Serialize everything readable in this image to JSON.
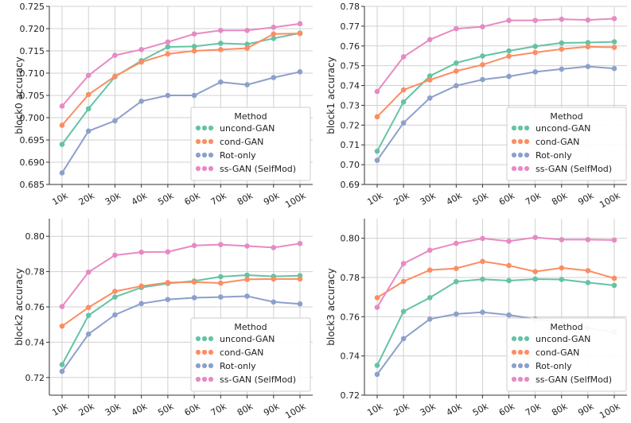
{
  "chart_data": [
    {
      "type": "line",
      "ylabel": "block0 accuracy",
      "categories": [
        "10k",
        "20k",
        "30k",
        "40k",
        "50k",
        "60k",
        "70k",
        "80k",
        "90k",
        "100k"
      ],
      "ylim": [
        0.685,
        0.725
      ],
      "yticks": [
        "0.685",
        "0.690",
        "0.695",
        "0.700",
        "0.705",
        "0.710",
        "0.715",
        "0.720",
        "0.725"
      ],
      "grid": true,
      "legend": {
        "title": "Method",
        "placement": "lower-right"
      },
      "series": [
        {
          "name": "uncond-GAN",
          "values": [
            0.694,
            0.702,
            0.7092,
            0.7128,
            0.7159,
            0.716,
            0.7167,
            0.7165,
            0.7178,
            0.719
          ]
        },
        {
          "name": "cond-GAN",
          "values": [
            0.6983,
            0.7052,
            0.7093,
            0.7125,
            0.7143,
            0.715,
            0.7153,
            0.7156,
            0.7188,
            0.7189
          ]
        },
        {
          "name": "Rot-only",
          "values": [
            0.6876,
            0.697,
            0.6993,
            0.7037,
            0.705,
            0.705,
            0.708,
            0.7074,
            0.709,
            0.7103
          ]
        },
        {
          "name": "ss-GAN (SelfMod)",
          "values": [
            0.7026,
            0.7095,
            0.714,
            0.7153,
            0.717,
            0.7188,
            0.7196,
            0.7196,
            0.7203,
            0.7211
          ]
        }
      ]
    },
    {
      "type": "line",
      "ylabel": "block1 accuracy",
      "categories": [
        "10k",
        "20k",
        "30k",
        "40k",
        "50k",
        "60k",
        "70k",
        "80k",
        "90k",
        "100k"
      ],
      "ylim": [
        0.69,
        0.78
      ],
      "yticks": [
        "0.69",
        "0.70",
        "0.71",
        "0.72",
        "0.73",
        "0.74",
        "0.75",
        "0.76",
        "0.77",
        "0.78"
      ],
      "grid": true,
      "legend": {
        "title": "Method",
        "placement": "lower-right"
      },
      "series": [
        {
          "name": "uncond-GAN",
          "values": [
            0.7068,
            0.7317,
            0.7448,
            0.7514,
            0.7549,
            0.7575,
            0.7598,
            0.7615,
            0.7617,
            0.7621
          ]
        },
        {
          "name": "cond-GAN",
          "values": [
            0.7242,
            0.7378,
            0.7428,
            0.7473,
            0.7505,
            0.7548,
            0.7567,
            0.7584,
            0.7596,
            0.7593
          ]
        },
        {
          "name": "Rot-only",
          "values": [
            0.7022,
            0.7211,
            0.7337,
            0.7399,
            0.743,
            0.7446,
            0.7469,
            0.7483,
            0.7496,
            0.7486
          ]
        },
        {
          "name": "ss-GAN (SelfMod)",
          "values": [
            0.737,
            0.7545,
            0.7632,
            0.7687,
            0.7697,
            0.7729,
            0.7729,
            0.7735,
            0.7731,
            0.7738
          ]
        }
      ]
    },
    {
      "type": "line",
      "ylabel": "block2 accuracy",
      "categories": [
        "10k",
        "20k",
        "30k",
        "40k",
        "50k",
        "60k",
        "70k",
        "80k",
        "90k",
        "100k"
      ],
      "ylim": [
        0.71,
        0.81
      ],
      "yticks": [
        "0.72",
        "0.74",
        "0.76",
        "0.78",
        "0.80"
      ],
      "grid": true,
      "legend": {
        "title": "Method",
        "placement": "lower-right"
      },
      "series": [
        {
          "name": "uncond-GAN",
          "values": [
            0.7273,
            0.7552,
            0.7656,
            0.771,
            0.7733,
            0.7747,
            0.7771,
            0.778,
            0.7773,
            0.7777
          ]
        },
        {
          "name": "cond-GAN",
          "values": [
            0.7491,
            0.7597,
            0.7688,
            0.7718,
            0.7738,
            0.7741,
            0.7735,
            0.7756,
            0.7758,
            0.7758
          ]
        },
        {
          "name": "Rot-only",
          "values": [
            0.7235,
            0.7446,
            0.7555,
            0.7619,
            0.7642,
            0.7652,
            0.7656,
            0.7661,
            0.7628,
            0.7617
          ]
        },
        {
          "name": "ss-GAN (SelfMod)",
          "values": [
            0.7602,
            0.7797,
            0.7893,
            0.791,
            0.7912,
            0.7948,
            0.7953,
            0.7945,
            0.7936,
            0.7959
          ]
        }
      ]
    },
    {
      "type": "line",
      "ylabel": "block3 accuracy",
      "categories": [
        "10k",
        "20k",
        "30k",
        "40k",
        "50k",
        "60k",
        "70k",
        "80k",
        "90k",
        "100k"
      ],
      "ylim": [
        0.72,
        0.81
      ],
      "yticks": [
        "0.72",
        "0.74",
        "0.76",
        "0.78",
        "0.80"
      ],
      "grid": true,
      "legend": {
        "title": "Method",
        "placement": "lower-right"
      },
      "series": [
        {
          "name": "uncond-GAN",
          "values": [
            0.7352,
            0.7627,
            0.7697,
            0.7779,
            0.7791,
            0.7784,
            0.7792,
            0.779,
            0.7774,
            0.776
          ]
        },
        {
          "name": "cond-GAN",
          "values": [
            0.7697,
            0.778,
            0.7838,
            0.7846,
            0.7882,
            0.7861,
            0.783,
            0.7849,
            0.7835,
            0.7796
          ]
        },
        {
          "name": "Rot-only",
          "values": [
            0.7306,
            0.7488,
            0.7588,
            0.7614,
            0.7623,
            0.7609,
            0.7588,
            0.7573,
            0.7542,
            0.7521
          ]
        },
        {
          "name": "ss-GAN (SelfMod)",
          "values": [
            0.7648,
            0.7871,
            0.7939,
            0.7974,
            0.7999,
            0.7985,
            0.8004,
            0.7993,
            0.7993,
            0.7991
          ]
        }
      ]
    }
  ],
  "colors": {
    "uncond-GAN": "#66c2a5",
    "cond-GAN": "#fc8d62",
    "Rot-only": "#8da0cb",
    "ss-GAN (SelfMod)": "#e78ac3",
    "grid": "#d0d0d0",
    "axis": "#333333"
  }
}
